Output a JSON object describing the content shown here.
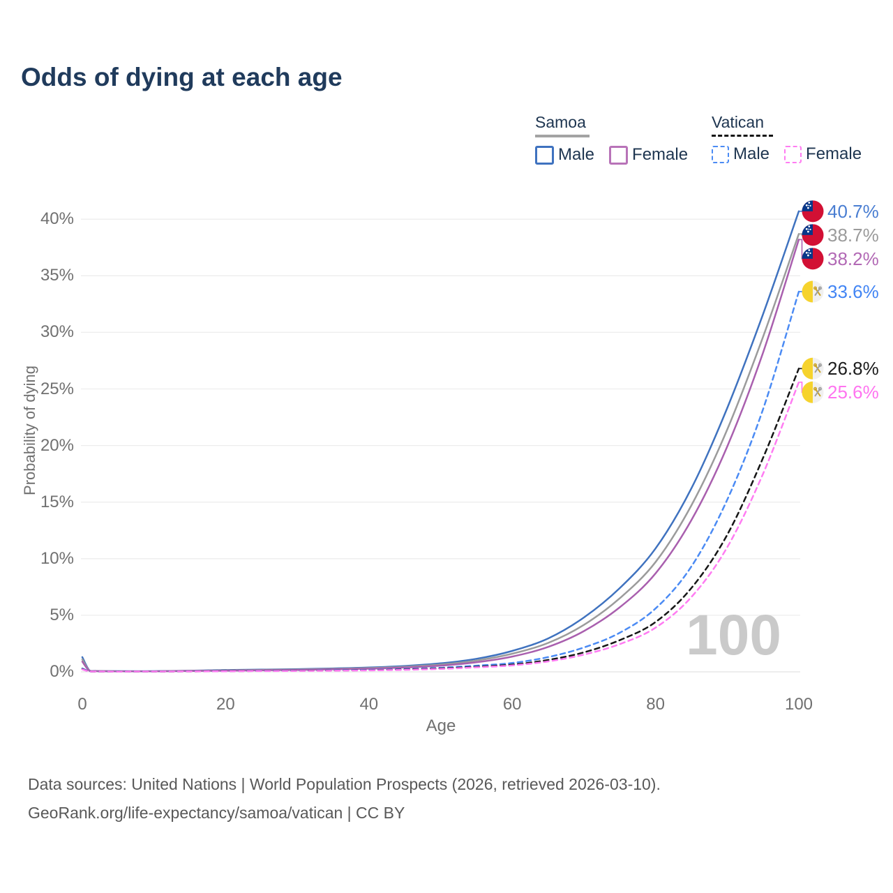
{
  "title": "Odds of dying at each age",
  "legend": {
    "groups": [
      {
        "label": "Samoa",
        "line_style": "solid",
        "header_rule_color": "#a3a3a3",
        "items": [
          {
            "label": "Male",
            "color": "#3f72bf",
            "dashed": false
          },
          {
            "label": "Female",
            "color": "#b873b8",
            "dashed": false
          }
        ]
      },
      {
        "label": "Vatican",
        "line_style": "dashed",
        "header_rule_color": "#141414",
        "items": [
          {
            "label": "Male",
            "color": "#4b8bf4",
            "dashed": true
          },
          {
            "label": "Female",
            "color": "#ff7cf2",
            "dashed": true
          }
        ]
      }
    ]
  },
  "chart_data": {
    "type": "line",
    "title": "Odds of dying at each age",
    "xlabel": "Age",
    "ylabel": "Probability of dying",
    "xlim": [
      0,
      100
    ],
    "ylim_pct": [
      0,
      41.5
    ],
    "x_ticks": [
      0,
      20,
      40,
      60,
      80,
      100
    ],
    "y_ticks": [
      "0%",
      "5%",
      "10%",
      "15%",
      "20%",
      "25%",
      "30%",
      "35%",
      "40%"
    ],
    "grid": "horizontal",
    "watermark": "100",
    "legend_position": "top-right",
    "series": [
      {
        "name": "Samoa Male",
        "country": "Samoa",
        "sex": "Male",
        "color": "#3f72bf",
        "label_color": "#4a7ed2",
        "dashed": false,
        "end_label": "40.7%",
        "flag": "samoa",
        "points": [
          [
            0,
            1.3
          ],
          [
            1,
            0.12
          ],
          [
            2,
            0.08
          ],
          [
            5,
            0.06
          ],
          [
            10,
            0.06
          ],
          [
            15,
            0.1
          ],
          [
            20,
            0.16
          ],
          [
            25,
            0.2
          ],
          [
            30,
            0.24
          ],
          [
            35,
            0.3
          ],
          [
            40,
            0.38
          ],
          [
            45,
            0.52
          ],
          [
            50,
            0.75
          ],
          [
            55,
            1.15
          ],
          [
            60,
            1.85
          ],
          [
            65,
            2.95
          ],
          [
            70,
            4.8
          ],
          [
            75,
            7.4
          ],
          [
            80,
            10.9
          ],
          [
            85,
            16.2
          ],
          [
            90,
            23.3
          ],
          [
            95,
            31.6
          ],
          [
            100,
            40.7
          ]
        ]
      },
      {
        "name": "Samoa Both sexes",
        "country": "Samoa",
        "sex": "Both",
        "color": "#9b9b9b",
        "label_color": "#9b9b9b",
        "dashed": false,
        "end_label": "38.7%",
        "flag": "samoa",
        "points": [
          [
            0,
            1.1
          ],
          [
            1,
            0.1
          ],
          [
            2,
            0.07
          ],
          [
            5,
            0.05
          ],
          [
            10,
            0.05
          ],
          [
            15,
            0.09
          ],
          [
            20,
            0.13
          ],
          [
            25,
            0.17
          ],
          [
            30,
            0.2
          ],
          [
            35,
            0.26
          ],
          [
            40,
            0.33
          ],
          [
            45,
            0.45
          ],
          [
            50,
            0.65
          ],
          [
            55,
            1.0
          ],
          [
            60,
            1.6
          ],
          [
            65,
            2.55
          ],
          [
            70,
            4.15
          ],
          [
            75,
            6.5
          ],
          [
            80,
            9.7
          ],
          [
            85,
            14.7
          ],
          [
            90,
            21.4
          ],
          [
            95,
            29.6
          ],
          [
            100,
            38.7
          ]
        ]
      },
      {
        "name": "Samoa Female",
        "country": "Samoa",
        "sex": "Female",
        "color": "#a95fae",
        "label_color": "#b269b5",
        "dashed": false,
        "end_label": "38.2%",
        "flag": "samoa",
        "points": [
          [
            0,
            0.9
          ],
          [
            1,
            0.09
          ],
          [
            2,
            0.06
          ],
          [
            5,
            0.05
          ],
          [
            10,
            0.05
          ],
          [
            15,
            0.08
          ],
          [
            20,
            0.11
          ],
          [
            25,
            0.14
          ],
          [
            30,
            0.17
          ],
          [
            35,
            0.22
          ],
          [
            40,
            0.28
          ],
          [
            45,
            0.38
          ],
          [
            50,
            0.55
          ],
          [
            55,
            0.85
          ],
          [
            60,
            1.35
          ],
          [
            65,
            2.2
          ],
          [
            70,
            3.6
          ],
          [
            75,
            5.7
          ],
          [
            80,
            8.7
          ],
          [
            85,
            13.4
          ],
          [
            90,
            19.9
          ],
          [
            95,
            28.2
          ],
          [
            100,
            38.2
          ]
        ]
      },
      {
        "name": "Vatican Male",
        "country": "Vatican",
        "sex": "Male",
        "color": "#4b8bf4",
        "label_color": "#4285f4",
        "dashed": true,
        "end_label": "33.6%",
        "flag": "vatican",
        "points": [
          [
            0,
            0.3
          ],
          [
            1,
            0.04
          ],
          [
            2,
            0.03
          ],
          [
            5,
            0.03
          ],
          [
            10,
            0.03
          ],
          [
            15,
            0.05
          ],
          [
            20,
            0.07
          ],
          [
            25,
            0.09
          ],
          [
            30,
            0.11
          ],
          [
            35,
            0.14
          ],
          [
            40,
            0.18
          ],
          [
            45,
            0.25
          ],
          [
            50,
            0.36
          ],
          [
            55,
            0.55
          ],
          [
            60,
            0.78
          ],
          [
            65,
            1.3
          ],
          [
            70,
            2.15
          ],
          [
            75,
            3.45
          ],
          [
            80,
            5.6
          ],
          [
            85,
            9.3
          ],
          [
            90,
            15.2
          ],
          [
            95,
            23.2
          ],
          [
            100,
            33.6
          ]
        ]
      },
      {
        "name": "Vatican Both sexes",
        "country": "Vatican",
        "sex": "Both",
        "color": "#161616",
        "label_color": "#1c1c1c",
        "dashed": true,
        "end_label": "26.8%",
        "flag": "vatican",
        "points": [
          [
            0,
            0.25
          ],
          [
            1,
            0.04
          ],
          [
            2,
            0.03
          ],
          [
            5,
            0.03
          ],
          [
            10,
            0.03
          ],
          [
            15,
            0.04
          ],
          [
            20,
            0.06
          ],
          [
            25,
            0.08
          ],
          [
            30,
            0.1
          ],
          [
            35,
            0.12
          ],
          [
            40,
            0.15
          ],
          [
            45,
            0.21
          ],
          [
            50,
            0.3
          ],
          [
            55,
            0.45
          ],
          [
            60,
            0.64
          ],
          [
            65,
            1.05
          ],
          [
            70,
            1.72
          ],
          [
            75,
            2.8
          ],
          [
            80,
            4.4
          ],
          [
            85,
            7.4
          ],
          [
            90,
            12.1
          ],
          [
            95,
            18.9
          ],
          [
            100,
            26.8
          ]
        ]
      },
      {
        "name": "Vatican Female",
        "country": "Vatican",
        "sex": "Female",
        "color": "#ff7cf2",
        "label_color": "#ff74f0",
        "dashed": true,
        "end_label": "25.6%",
        "flag": "vatican",
        "points": [
          [
            0,
            0.22
          ],
          [
            1,
            0.03
          ],
          [
            2,
            0.03
          ],
          [
            5,
            0.02
          ],
          [
            10,
            0.03
          ],
          [
            15,
            0.04
          ],
          [
            20,
            0.05
          ],
          [
            25,
            0.07
          ],
          [
            30,
            0.08
          ],
          [
            35,
            0.1
          ],
          [
            40,
            0.13
          ],
          [
            45,
            0.18
          ],
          [
            50,
            0.26
          ],
          [
            55,
            0.4
          ],
          [
            60,
            0.57
          ],
          [
            65,
            0.92
          ],
          [
            70,
            1.52
          ],
          [
            75,
            2.45
          ],
          [
            80,
            3.9
          ],
          [
            85,
            6.6
          ],
          [
            90,
            11.0
          ],
          [
            95,
            17.5
          ],
          [
            100,
            25.6
          ]
        ]
      }
    ]
  },
  "footer": {
    "line1": "Data sources: United Nations | World Population Prospects (2026, retrieved 2026-03-10).",
    "line2": "GeoRank.org/life-expectancy/samoa/vatican | CC BY"
  },
  "colors": {
    "title": "#203b5c",
    "legend_text": "#1e3550",
    "axis_text": "#707070",
    "grid": "#ededed",
    "watermark": "#cacaca",
    "footer_text": "#585858",
    "samoa_flag_red": "#d21034",
    "samoa_flag_blue": "#073789",
    "vatican_flag_yellow": "#f6d32d"
  }
}
